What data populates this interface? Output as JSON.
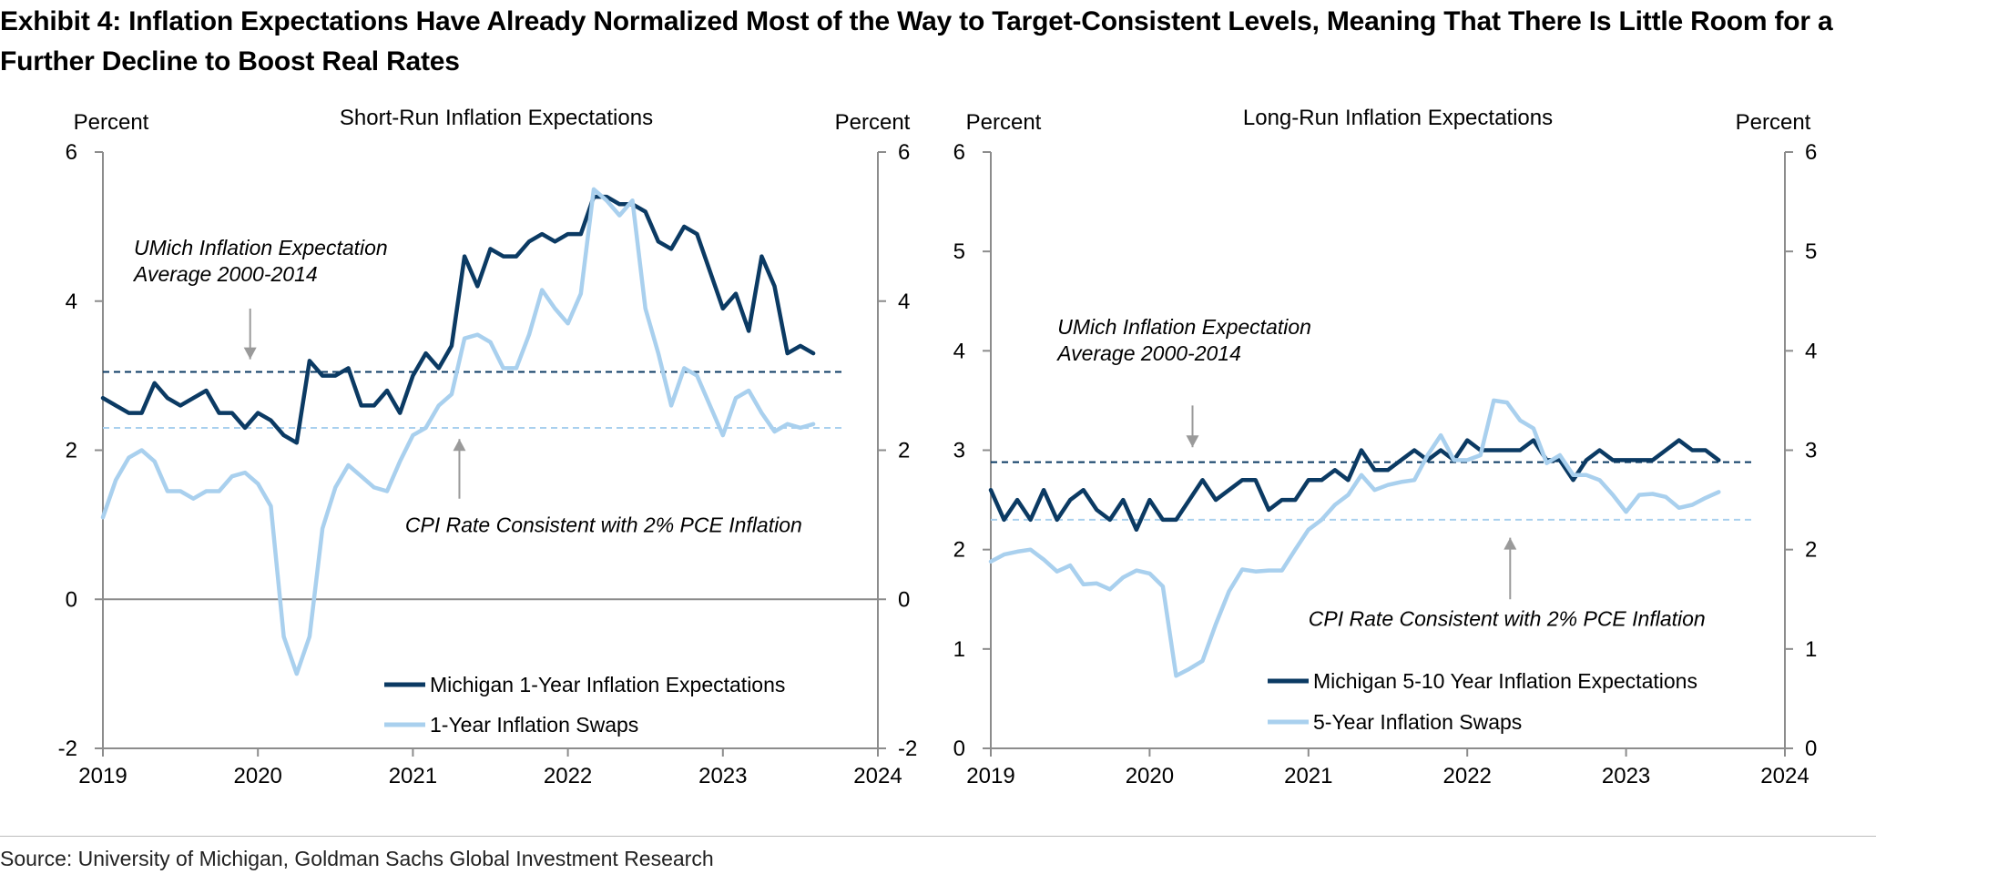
{
  "exhibit_title": "Exhibit 4: Inflation Expectations Have Already Normalized Most of the Way to Target-Consistent Levels, Meaning That There Is Little Room for a Further Decline to Boost Real Rates",
  "source": "Source: University of Michigan, Goldman Sachs Global Investment Research",
  "colors": {
    "dark": "#0b3a63",
    "light": "#a9d0ee",
    "axis": "#8c8c8c",
    "text": "#000000",
    "annotation_arrow": "#9a9a9a"
  },
  "chart_data": [
    {
      "type": "line",
      "title": "Short-Run Inflation Expectations",
      "ylabel_left": "Percent",
      "ylabel_right": "Percent",
      "xlim": [
        2019,
        2024
      ],
      "ylim": [
        -2,
        6
      ],
      "yticks": [
        -2,
        0,
        2,
        4,
        6
      ],
      "xticks": [
        2019,
        2020,
        2021,
        2022,
        2023,
        2024
      ],
      "legend_placement": "bottom-right",
      "reference_lines": [
        {
          "name": "umich-average",
          "y": 3.05,
          "color": "#0b3a63",
          "style": "dashed"
        },
        {
          "name": "cpi-consistent",
          "y": 2.3,
          "color": "#a9d0ee",
          "style": "dashed"
        }
      ],
      "annotations": [
        {
          "name": "umich-average-note",
          "lines": [
            "UMich Inflation Expectation",
            "Average 2000-2014"
          ],
          "x": 2019.2,
          "y": 4.62,
          "arrow_x": 2019.95,
          "arrow_from": 3.9,
          "arrow_to": 3.22
        },
        {
          "name": "cpi-consistent-note",
          "lines": [
            "CPI Rate Consistent with 2% PCE Inflation"
          ],
          "x": 2020.95,
          "y": 0.9,
          "arrow_x": 2021.3,
          "arrow_from": 1.35,
          "arrow_to": 2.15
        }
      ],
      "series": [
        {
          "name": "Michigan 1-Year Inflation Expectations",
          "color": "#0b3a63",
          "x": [
            2019.0,
            2019.0833,
            2019.1667,
            2019.25,
            2019.3333,
            2019.4167,
            2019.5,
            2019.5833,
            2019.6667,
            2019.75,
            2019.8333,
            2019.9167,
            2020.0,
            2020.0833,
            2020.1667,
            2020.25,
            2020.3333,
            2020.4167,
            2020.5,
            2020.5833,
            2020.6667,
            2020.75,
            2020.8333,
            2020.9167,
            2021.0,
            2021.0833,
            2021.1667,
            2021.25,
            2021.3333,
            2021.4167,
            2021.5,
            2021.5833,
            2021.6667,
            2021.75,
            2021.8333,
            2021.9167,
            2022.0,
            2022.0833,
            2022.1667,
            2022.25,
            2022.3333,
            2022.4167,
            2022.5,
            2022.5833,
            2022.6667,
            2022.75,
            2022.8333,
            2022.9167,
            2023.0,
            2023.0833,
            2023.1667,
            2023.25,
            2023.3333,
            2023.4167,
            2023.5,
            2023.5833
          ],
          "values": [
            2.7,
            2.6,
            2.5,
            2.5,
            2.9,
            2.7,
            2.6,
            2.7,
            2.8,
            2.5,
            2.5,
            2.3,
            2.5,
            2.4,
            2.2,
            2.1,
            3.2,
            3.0,
            3.0,
            3.1,
            2.6,
            2.6,
            2.8,
            2.5,
            3.0,
            3.3,
            3.1,
            3.4,
            4.6,
            4.2,
            4.7,
            4.6,
            4.6,
            4.8,
            4.9,
            4.8,
            4.9,
            4.9,
            5.4,
            5.4,
            5.3,
            5.3,
            5.2,
            4.8,
            4.7,
            5.0,
            4.9,
            4.4,
            3.9,
            4.1,
            3.6,
            4.6,
            4.2,
            3.3,
            3.4,
            3.3
          ]
        },
        {
          "name": "1-Year Inflation Swaps",
          "color": "#a9d0ee",
          "x": [
            2019.0,
            2019.0833,
            2019.1667,
            2019.25,
            2019.3333,
            2019.4167,
            2019.5,
            2019.5833,
            2019.6667,
            2019.75,
            2019.8333,
            2019.9167,
            2020.0,
            2020.0833,
            2020.1667,
            2020.25,
            2020.3333,
            2020.4167,
            2020.5,
            2020.5833,
            2020.6667,
            2020.75,
            2020.8333,
            2020.9167,
            2021.0,
            2021.0833,
            2021.1667,
            2021.25,
            2021.3333,
            2021.4167,
            2021.5,
            2021.5833,
            2021.6667,
            2021.75,
            2021.8333,
            2021.9167,
            2022.0,
            2022.0833,
            2022.1667,
            2022.25,
            2022.3333,
            2022.4167,
            2022.5,
            2022.5833,
            2022.6667,
            2022.75,
            2022.8333,
            2022.9167,
            2023.0,
            2023.0833,
            2023.1667,
            2023.25,
            2023.3333,
            2023.4167,
            2023.5,
            2023.5833
          ],
          "values": [
            1.1,
            1.6,
            1.9,
            2.0,
            1.85,
            1.45,
            1.45,
            1.35,
            1.45,
            1.45,
            1.65,
            1.7,
            1.55,
            1.25,
            -0.5,
            -1.0,
            -0.5,
            0.95,
            1.5,
            1.8,
            1.65,
            1.5,
            1.45,
            1.85,
            2.2,
            2.3,
            2.6,
            2.75,
            3.5,
            3.55,
            3.45,
            3.1,
            3.1,
            3.55,
            4.15,
            3.9,
            3.7,
            4.1,
            5.5,
            5.35,
            5.15,
            5.35,
            3.9,
            3.3,
            2.6,
            3.1,
            3.0,
            2.6,
            2.2,
            2.7,
            2.8,
            2.5,
            2.25,
            2.35,
            2.3,
            2.35
          ]
        }
      ]
    },
    {
      "type": "line",
      "title": "Long-Run Inflation Expectations",
      "ylabel_left": "Percent",
      "ylabel_right": "Percent",
      "xlim": [
        2019,
        2024
      ],
      "ylim": [
        0,
        6
      ],
      "yticks": [
        0,
        1,
        2,
        3,
        4,
        5,
        6
      ],
      "xticks": [
        2019,
        2020,
        2021,
        2022,
        2023,
        2024
      ],
      "legend_placement": "bottom-right",
      "reference_lines": [
        {
          "name": "umich-average",
          "y": 2.88,
          "color": "#0b3a63",
          "style": "dashed"
        },
        {
          "name": "cpi-consistent",
          "y": 2.3,
          "color": "#a9d0ee",
          "style": "dashed"
        }
      ],
      "annotations": [
        {
          "name": "umich-average-note",
          "lines": [
            "UMich Inflation Expectation",
            "Average 2000-2014"
          ],
          "x": 2019.42,
          "y": 4.17,
          "arrow_x": 2020.27,
          "arrow_from": 3.45,
          "arrow_to": 3.03
        },
        {
          "name": "cpi-consistent-note",
          "lines": [
            "CPI Rate Consistent with 2% PCE Inflation"
          ],
          "x": 2021.0,
          "y": 1.23,
          "arrow_x": 2022.27,
          "arrow_from": 1.5,
          "arrow_to": 2.12
        }
      ],
      "series": [
        {
          "name": "Michigan 5-10 Year Inflation Expectations",
          "color": "#0b3a63",
          "x": [
            2019.0,
            2019.0833,
            2019.1667,
            2019.25,
            2019.3333,
            2019.4167,
            2019.5,
            2019.5833,
            2019.6667,
            2019.75,
            2019.8333,
            2019.9167,
            2020.0,
            2020.0833,
            2020.1667,
            2020.25,
            2020.3333,
            2020.4167,
            2020.5,
            2020.5833,
            2020.6667,
            2020.75,
            2020.8333,
            2020.9167,
            2021.0,
            2021.0833,
            2021.1667,
            2021.25,
            2021.3333,
            2021.4167,
            2021.5,
            2021.5833,
            2021.6667,
            2021.75,
            2021.8333,
            2021.9167,
            2022.0,
            2022.0833,
            2022.1667,
            2022.25,
            2022.3333,
            2022.4167,
            2022.5,
            2022.5833,
            2022.6667,
            2022.75,
            2022.8333,
            2022.9167,
            2023.0,
            2023.0833,
            2023.1667,
            2023.25,
            2023.3333,
            2023.4167,
            2023.5,
            2023.5833
          ],
          "values": [
            2.6,
            2.3,
            2.5,
            2.3,
            2.6,
            2.3,
            2.5,
            2.6,
            2.4,
            2.3,
            2.5,
            2.2,
            2.5,
            2.3,
            2.3,
            2.5,
            2.7,
            2.5,
            2.6,
            2.7,
            2.7,
            2.4,
            2.5,
            2.5,
            2.7,
            2.7,
            2.8,
            2.7,
            3.0,
            2.8,
            2.8,
            2.9,
            3.0,
            2.9,
            3.0,
            2.9,
            3.1,
            3.0,
            3.0,
            3.0,
            3.0,
            3.1,
            2.9,
            2.9,
            2.7,
            2.9,
            3.0,
            2.9,
            2.9,
            2.9,
            2.9,
            3.0,
            3.1,
            3.0,
            3.0,
            2.9
          ]
        },
        {
          "name": "5-Year Inflation Swaps",
          "color": "#a9d0ee",
          "x": [
            2019.0,
            2019.0833,
            2019.1667,
            2019.25,
            2019.3333,
            2019.4167,
            2019.5,
            2019.5833,
            2019.6667,
            2019.75,
            2019.8333,
            2019.9167,
            2020.0,
            2020.0833,
            2020.1667,
            2020.25,
            2020.3333,
            2020.4167,
            2020.5,
            2020.5833,
            2020.6667,
            2020.75,
            2020.8333,
            2020.9167,
            2021.0,
            2021.0833,
            2021.1667,
            2021.25,
            2021.3333,
            2021.4167,
            2021.5,
            2021.5833,
            2021.6667,
            2021.75,
            2021.8333,
            2021.9167,
            2022.0,
            2022.0833,
            2022.1667,
            2022.25,
            2022.3333,
            2022.4167,
            2022.5,
            2022.5833,
            2022.6667,
            2022.75,
            2022.8333,
            2022.9167,
            2023.0,
            2023.0833,
            2023.1667,
            2023.25,
            2023.3333,
            2023.4167,
            2023.5,
            2023.5833
          ],
          "values": [
            1.88,
            1.95,
            1.98,
            2.0,
            1.9,
            1.78,
            1.84,
            1.65,
            1.66,
            1.6,
            1.72,
            1.79,
            1.76,
            1.63,
            0.73,
            0.8,
            0.88,
            1.25,
            1.58,
            1.8,
            1.78,
            1.79,
            1.79,
            2.0,
            2.2,
            2.3,
            2.45,
            2.55,
            2.75,
            2.6,
            2.65,
            2.68,
            2.7,
            2.95,
            3.15,
            2.9,
            2.9,
            2.95,
            3.5,
            3.48,
            3.3,
            3.22,
            2.87,
            2.95,
            2.75,
            2.75,
            2.7,
            2.55,
            2.38,
            2.55,
            2.56,
            2.53,
            2.42,
            2.45,
            2.52,
            2.58
          ]
        }
      ]
    }
  ]
}
